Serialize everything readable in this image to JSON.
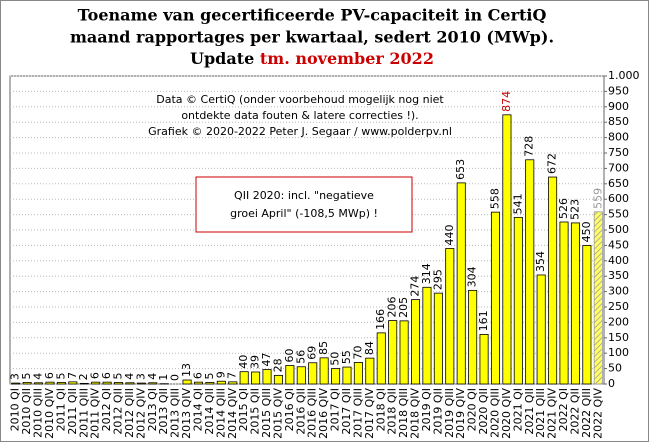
{
  "chart_data": {
    "type": "bar",
    "title": [
      "Toename van gecertificeerde PV-capaciteit in CertiQ",
      "maand rapportages per kwartaal, sedert 2010 (MWp)."
    ],
    "update_label": "Update",
    "update_date": "tm. november 2022",
    "annotation": [
      "Data © CertiQ (onder voorbehoud mogelijk  nog niet",
      "ontdekte data fouten & latere correcties !).",
      "Grafiek  © 2020-2022 Peter J. Segaar / www.polderpv.nl"
    ],
    "note_box": [
      "QII 2020:  incl. \"negatieve",
      "groei April\"  (-108,5 MWp)  !"
    ],
    "categories": [
      "2010 QI",
      "2010 QII",
      "2010 QIII",
      "2010 QIV",
      "2011 QI",
      "2011 QII",
      "2011 QIII",
      "2011 QIV",
      "2012 QI",
      "2012 QII",
      "2012 QIII",
      "2012 QIV",
      "2013 QI",
      "2013 QII",
      "2013 QIII",
      "2013 QIV",
      "2014 QI",
      "2014 QII",
      "2014 QIII",
      "2014 QIV",
      "2015 QI",
      "2015 QII",
      "2015 QIII",
      "2015 QIV",
      "2016 QI",
      "2016 QII",
      "2016 QIII",
      "2016 QIV",
      "2017 QI",
      "2017 QII",
      "2017 QIII",
      "2017 QIV",
      "2018 QI",
      "2018 QII",
      "2018 QIII",
      "2018 QIV",
      "2019 QI",
      "2019 QII",
      "2019 QIII",
      "2019 QIV",
      "2020 QI",
      "2020 QII",
      "2020 QIII",
      "2020 QIV",
      "2021 QI",
      "2021 QII",
      "2021 QIII",
      "2021 QIV",
      "2022 QI",
      "2022 QII",
      "2022 QIII",
      "2022 QIV"
    ],
    "values": [
      3,
      5,
      4,
      6,
      5,
      7,
      2,
      6,
      6,
      5,
      4,
      3,
      4,
      1,
      0,
      13,
      6,
      5,
      9,
      7,
      40,
      39,
      47,
      28,
      60,
      56,
      69,
      85,
      50,
      55,
      70,
      84,
      166,
      206,
      205,
      274,
      314,
      295,
      440,
      653,
      304,
      161,
      558,
      874,
      541,
      728,
      354,
      672,
      526,
      523,
      450,
      559
    ],
    "color": "#ffff00",
    "label_color": "#000000",
    "peak_label_color": "#cc0000",
    "last_label_color": "#999999",
    "ylim": [
      0,
      1000
    ],
    "yticks": [
      0,
      50,
      100,
      150,
      200,
      250,
      300,
      350,
      400,
      450,
      500,
      550,
      600,
      650,
      700,
      750,
      800,
      850,
      900,
      950,
      {
        "value": 1000,
        "label": "1.000"
      }
    ],
    "grid": true
  }
}
